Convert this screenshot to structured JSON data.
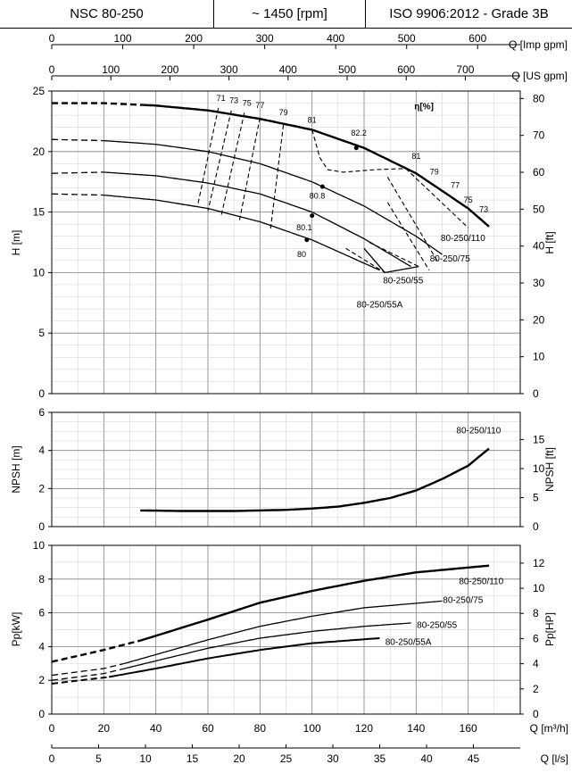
{
  "header": {
    "model": "NSC 80-250",
    "speed": "~ 1450 [rpm]",
    "standard": "ISO 9906:2012 - Grade 3B"
  },
  "colors": {
    "curve": "#000000",
    "grid_major": "#808080",
    "grid_minor": "#cfcfcf"
  },
  "chart_data": [
    {
      "name": "top-axes",
      "type": "axis",
      "axes": [
        {
          "label": "Q [Imp gpm]",
          "range": [
            0,
            660
          ],
          "ticks": [
            0,
            100,
            200,
            300,
            400,
            500,
            600
          ]
        },
        {
          "label": "Q [US gpm]",
          "range": [
            0,
            793
          ],
          "ticks": [
            0,
            100,
            200,
            300,
            400,
            500,
            600,
            700
          ]
        }
      ]
    },
    {
      "name": "head",
      "type": "line",
      "xlabel": "Q [m³/h]",
      "xlim": [
        0,
        180
      ],
      "ylabel": "H [m]",
      "ylim": [
        0,
        25
      ],
      "yticks": [
        0,
        5,
        10,
        15,
        20,
        25
      ],
      "y2label": "H [ft]",
      "y2ticks": [
        0,
        10,
        20,
        30,
        40,
        50,
        60,
        70,
        80
      ],
      "grid": true,
      "annotations_title": "η[%]",
      "series": [
        {
          "name": "80-250/110",
          "dashed_x": [
            0,
            35
          ],
          "x": [
            0,
            20,
            40,
            60,
            80,
            100,
            120,
            140,
            160,
            168
          ],
          "y": [
            24,
            24,
            23.8,
            23.4,
            22.7,
            21.8,
            20.3,
            18.2,
            15.3,
            13.8
          ]
        },
        {
          "name": "80-250/75",
          "dashed_x": [
            0,
            20
          ],
          "x": [
            0,
            20,
            40,
            60,
            80,
            100,
            120,
            140,
            150
          ],
          "y": [
            21,
            20.9,
            20.6,
            20,
            19,
            17.5,
            15.5,
            13,
            11.5
          ]
        },
        {
          "name": "80-250/55",
          "dashed_x": [
            0,
            20
          ],
          "x": [
            0,
            20,
            40,
            60,
            80,
            100,
            120,
            138
          ],
          "y": [
            18.2,
            18.3,
            18,
            17.4,
            16.5,
            15,
            12.8,
            10.5
          ]
        },
        {
          "name": "80-250/55A",
          "dashed_x": [
            0,
            20
          ],
          "x": [
            0,
            20,
            40,
            60,
            80,
            100,
            126
          ],
          "y": [
            16.5,
            16.4,
            16,
            15.3,
            14.2,
            12.7,
            10.2
          ]
        }
      ],
      "efficiency_lines": [
        {
          "label": "71",
          "x": [
            64,
            56
          ],
          "y": [
            23.6,
            15.5
          ]
        },
        {
          "label": "73",
          "x": [
            69,
            60
          ],
          "y": [
            23.4,
            15.1
          ]
        },
        {
          "label": "75",
          "x": [
            74,
            65
          ],
          "y": [
            23.2,
            14.6
          ]
        },
        {
          "label": "77",
          "x": [
            80,
            72
          ],
          "y": [
            22.8,
            14.2
          ]
        },
        {
          "label": "79",
          "x": [
            89,
            84
          ],
          "y": [
            22.2,
            13.5
          ]
        },
        {
          "label": "81",
          "x": [
            136,
            160
          ],
          "y": [
            18.6,
            13.7
          ]
        },
        {
          "label": "79",
          "x": [
            129,
            148
          ],
          "y": [
            17.9,
            11
          ]
        },
        {
          "label": "77",
          "x": [
            129,
            145
          ],
          "y": [
            15.8,
            10.2
          ]
        },
        {
          "label": "75",
          "x": [
            122,
            141
          ],
          "y": [
            12.5,
            10.5
          ]
        },
        {
          "label": "73",
          "x": [
            113,
            128
          ],
          "y": [
            12,
            10
          ]
        }
      ],
      "efficiency_labels": [
        {
          "text": "71",
          "x": 65,
          "y": 24.2
        },
        {
          "text": "73",
          "x": 70,
          "y": 24
        },
        {
          "text": "75",
          "x": 75,
          "y": 23.8
        },
        {
          "text": "77",
          "x": 80,
          "y": 23.6
        },
        {
          "text": "79",
          "x": 89,
          "y": 23
        },
        {
          "text": "81",
          "x": 100,
          "y": 22.4
        },
        {
          "text": "82.2",
          "x": 118,
          "y": 21.3
        },
        {
          "text": "81",
          "x": 140,
          "y": 19.4
        },
        {
          "text": "79",
          "x": 147,
          "y": 18.1
        },
        {
          "text": "77",
          "x": 155,
          "y": 17
        },
        {
          "text": "75",
          "x": 160,
          "y": 15.8
        },
        {
          "text": "73",
          "x": 166,
          "y": 15
        },
        {
          "text": "80.8",
          "x": 102,
          "y": 16.1
        },
        {
          "text": "80.1",
          "x": 97,
          "y": 13.5
        },
        {
          "text": "80",
          "x": 96,
          "y": 11.3
        }
      ],
      "bep_points": [
        {
          "x": 117,
          "y": 20.3
        },
        {
          "x": 104,
          "y": 17.1
        },
        {
          "x": 100,
          "y": 14.7
        },
        {
          "x": 98,
          "y": 12.7
        }
      ],
      "curve_labels": [
        {
          "text": "80-250/110",
          "x": 158,
          "y": 12.6
        },
        {
          "text": "80-250/75",
          "x": 153,
          "y": 10.9
        },
        {
          "text": "80-250/55",
          "x": 135,
          "y": 9.1
        },
        {
          "text": "80-250/55A",
          "x": 126,
          "y": 7.1
        }
      ]
    },
    {
      "name": "npsh",
      "type": "line",
      "ylabel": "NPSH [m]",
      "ylim": [
        0,
        6
      ],
      "yticks": [
        0,
        2,
        4,
        6
      ],
      "y2label": "NPSH [ft]",
      "y2ticks": [
        0,
        5,
        10,
        15
      ],
      "xlim": [
        0,
        180
      ],
      "grid": true,
      "series": [
        {
          "name": "80-250/110",
          "x": [
            34,
            50,
            70,
            90,
            100,
            110,
            120,
            130,
            140,
            150,
            160,
            168
          ],
          "y": [
            0.85,
            0.82,
            0.82,
            0.88,
            0.95,
            1.05,
            1.25,
            1.5,
            1.9,
            2.5,
            3.2,
            4.1
          ]
        }
      ],
      "curve_labels": [
        {
          "text": "80-250/110",
          "x": 164,
          "y": 4.9
        }
      ]
    },
    {
      "name": "power",
      "type": "line",
      "xlabel": "Q [m³/h]",
      "xlim": [
        0,
        180
      ],
      "xticks": [
        0,
        20,
        40,
        60,
        80,
        100,
        120,
        140,
        160
      ],
      "ylabel": "Pp[kW]",
      "ylim": [
        0,
        10
      ],
      "yticks": [
        0,
        2,
        4,
        6,
        8,
        10
      ],
      "y2label": "Pp[HP]",
      "y2ticks": [
        0,
        2,
        4,
        6,
        8,
        10,
        12
      ],
      "grid": true,
      "series": [
        {
          "name": "80-250/110",
          "dashed_x": [
            0,
            35
          ],
          "x": [
            0,
            20,
            35,
            60,
            80,
            100,
            120,
            140,
            168
          ],
          "y": [
            3.1,
            3.8,
            4.4,
            5.6,
            6.6,
            7.3,
            7.9,
            8.4,
            8.8
          ]
        },
        {
          "name": "80-250/75",
          "dashed_x": [
            0,
            28
          ],
          "x": [
            0,
            20,
            28,
            60,
            80,
            100,
            120,
            150
          ],
          "y": [
            2.3,
            2.7,
            3,
            4.4,
            5.2,
            5.8,
            6.3,
            6.7
          ]
        },
        {
          "name": "80-250/55",
          "dashed_x": [
            0,
            28
          ],
          "x": [
            0,
            20,
            28,
            60,
            80,
            100,
            120,
            138
          ],
          "y": [
            2.0,
            2.4,
            2.7,
            3.9,
            4.5,
            4.9,
            5.2,
            5.4
          ]
        },
        {
          "name": "80-250/55A",
          "dashed_x": [
            0,
            22
          ],
          "x": [
            0,
            22,
            40,
            60,
            80,
            100,
            126
          ],
          "y": [
            1.8,
            2.2,
            2.7,
            3.3,
            3.8,
            4.2,
            4.5
          ]
        }
      ],
      "curve_labels": [
        {
          "text": "80-250/110",
          "x": 165,
          "y": 7.7
        },
        {
          "text": "80-250/75",
          "x": 158,
          "y": 6.6
        },
        {
          "text": "80-250/55",
          "x": 148,
          "y": 5.1
        },
        {
          "text": "80-250/55A",
          "x": 137,
          "y": 4.1
        }
      ]
    },
    {
      "name": "bottom-axis",
      "type": "axis",
      "axes": [
        {
          "label": "Q [l/s]",
          "range": [
            0,
            50
          ],
          "ticks": [
            0,
            5,
            10,
            15,
            20,
            25,
            30,
            35,
            40,
            45
          ]
        }
      ]
    }
  ]
}
